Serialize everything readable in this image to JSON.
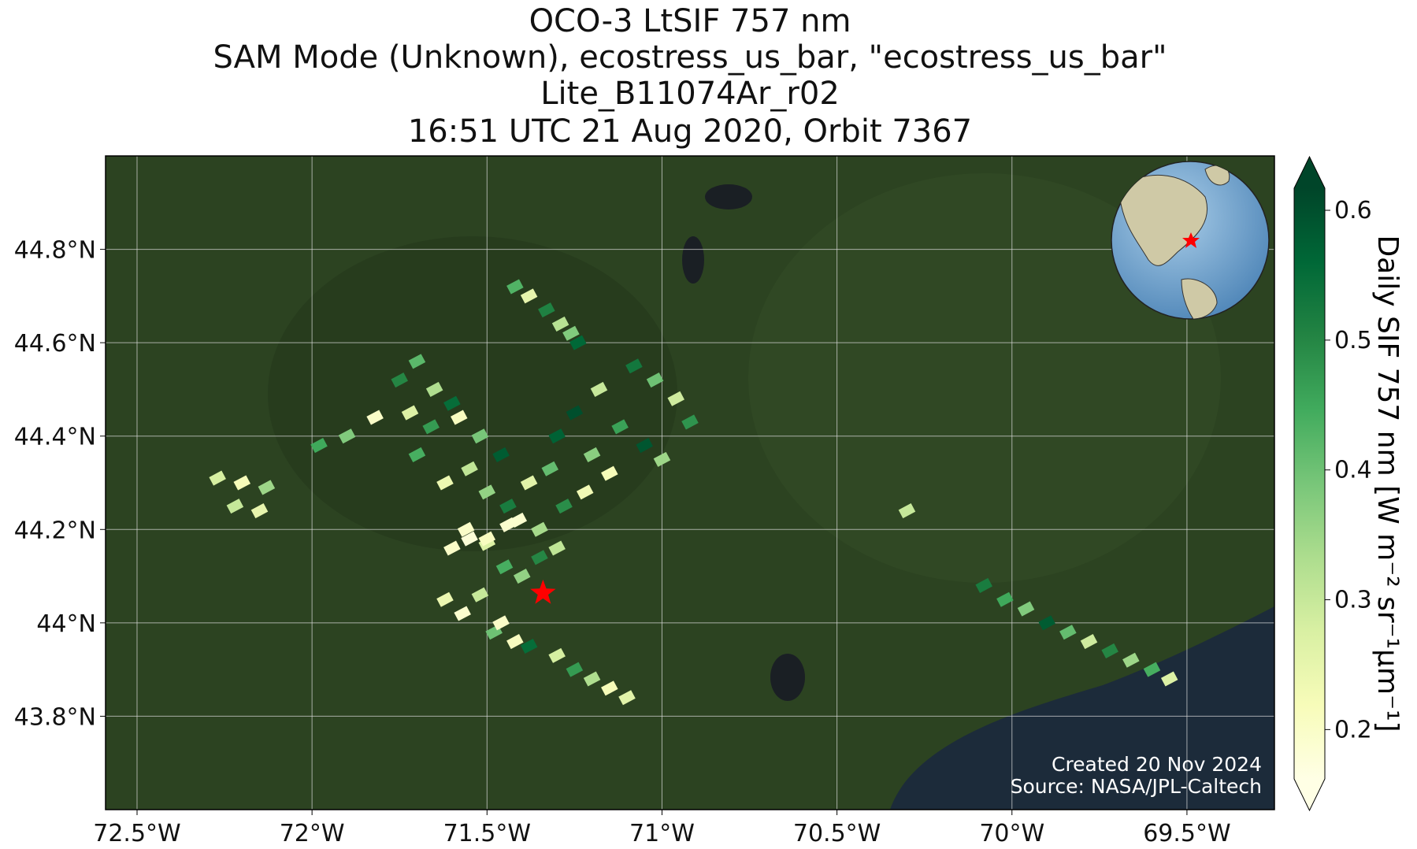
{
  "chart_data": {
    "type": "map",
    "title": [
      "OCO-3 LtSIF 757 nm",
      "SAM Mode (Unknown), ecostress_us_bar, \"ecostress_us_bar\"",
      "Lite_B11074Ar_r02",
      "16:51 UTC 21 Aug 2020, Orbit 7367"
    ],
    "xlim": [
      -72.59,
      -69.25
    ],
    "ylim": [
      43.6,
      45.0
    ],
    "xticks": [
      {
        "value": -72.5,
        "label": "72.5°W"
      },
      {
        "value": -72,
        "label": "72°W"
      },
      {
        "value": -71.5,
        "label": "71.5°W"
      },
      {
        "value": -71,
        "label": "71°W"
      },
      {
        "value": -70.5,
        "label": "70.5°W"
      },
      {
        "value": -70,
        "label": "70°W"
      },
      {
        "value": -69.5,
        "label": "69.5°W"
      }
    ],
    "yticks": [
      {
        "value": 43.8,
        "label": "43.8°N"
      },
      {
        "value": 44,
        "label": "44°N"
      },
      {
        "value": 44.2,
        "label": "44.2°N"
      },
      {
        "value": 44.4,
        "label": "44.4°N"
      },
      {
        "value": 44.6,
        "label": "44.6°N"
      },
      {
        "value": 44.8,
        "label": "44.8°N"
      }
    ],
    "grid": true,
    "colorbar": {
      "label": "Daily SIF 757 nm [W m⁻² sr⁻¹μm⁻¹]",
      "lim": [
        0.162,
        0.617
      ],
      "ticks": [
        0.2,
        0.3,
        0.4,
        0.5,
        0.6
      ],
      "colors": [
        "#ffffe5",
        "#f7fcb9",
        "#d9f0a3",
        "#addd8e",
        "#78c679",
        "#41ab5d",
        "#238443",
        "#006837",
        "#004529"
      ]
    },
    "points": {
      "lon": [
        -72.27,
        -72.2,
        -72.13,
        -72.22,
        -72.15,
        -71.98,
        -71.9,
        -71.82,
        -71.75,
        -71.7,
        -71.65,
        -71.6,
        -71.72,
        -71.66,
        -71.58,
        -71.52,
        -71.46,
        -71.55,
        -71.62,
        -71.7,
        -71.5,
        -71.44,
        -71.38,
        -71.32,
        -71.41,
        -71.35,
        -71.28,
        -71.22,
        -71.3,
        -71.25,
        -71.18,
        -71.12,
        -71.2,
        -71.15,
        -71.08,
        -71.02,
        -70.96,
        -70.92,
        -71.05,
        -71.0,
        -71.42,
        -71.38,
        -71.33,
        -71.29,
        -71.26,
        -71.24,
        -71.6,
        -71.55,
        -71.5,
        -71.45,
        -71.4,
        -71.35,
        -71.3,
        -71.62,
        -71.57,
        -71.48,
        -71.42,
        -71.38,
        -71.3,
        -71.25,
        -71.2,
        -71.15,
        -71.1,
        -71.52,
        -71.46,
        -70.08,
        -70.02,
        -69.96,
        -69.9,
        -69.84,
        -69.78,
        -69.72,
        -69.66,
        -69.6,
        -69.55,
        -70.3,
        -71.56,
        -71.5,
        -71.44
      ],
      "lat": [
        44.31,
        44.3,
        44.29,
        44.25,
        44.24,
        44.38,
        44.4,
        44.44,
        44.52,
        44.56,
        44.5,
        44.47,
        44.45,
        44.42,
        44.44,
        44.4,
        44.36,
        44.33,
        44.3,
        44.36,
        44.28,
        44.25,
        44.3,
        44.33,
        44.22,
        44.2,
        44.25,
        44.28,
        44.4,
        44.45,
        44.5,
        44.42,
        44.36,
        44.32,
        44.55,
        44.52,
        44.48,
        44.43,
        44.38,
        44.35,
        44.72,
        44.7,
        44.67,
        44.64,
        44.62,
        44.6,
        44.16,
        44.18,
        44.17,
        44.12,
        44.1,
        44.14,
        44.16,
        44.05,
        44.02,
        43.98,
        43.96,
        43.95,
        43.93,
        43.9,
        43.88,
        43.86,
        43.84,
        44.06,
        44.0,
        44.08,
        44.05,
        44.03,
        44.0,
        43.98,
        43.96,
        43.94,
        43.92,
        43.9,
        43.88,
        44.24,
        44.2,
        44.18,
        44.21
      ],
      "values": [
        0.28,
        0.22,
        0.35,
        0.3,
        0.25,
        0.45,
        0.38,
        0.2,
        0.5,
        0.42,
        0.33,
        0.55,
        0.27,
        0.47,
        0.21,
        0.39,
        0.58,
        0.31,
        0.24,
        0.44,
        0.36,
        0.52,
        0.26,
        0.41,
        0.19,
        0.34,
        0.49,
        0.23,
        0.57,
        0.6,
        0.3,
        0.46,
        0.37,
        0.22,
        0.53,
        0.4,
        0.29,
        0.48,
        0.59,
        0.35,
        0.43,
        0.25,
        0.51,
        0.32,
        0.38,
        0.56,
        0.2,
        0.18,
        0.27,
        0.44,
        0.36,
        0.5,
        0.31,
        0.24,
        0.19,
        0.4,
        0.21,
        0.55,
        0.28,
        0.47,
        0.33,
        0.22,
        0.26,
        0.3,
        0.2,
        0.52,
        0.45,
        0.38,
        0.58,
        0.41,
        0.29,
        0.5,
        0.35,
        0.44,
        0.27,
        0.3,
        0.2,
        0.21,
        0.19
      ]
    },
    "site": {
      "lon": -71.34,
      "lat": 44.064
    },
    "annotations": [
      "Created 20 Nov 2024",
      "Source: NASA/JPL-Caltech"
    ]
  }
}
